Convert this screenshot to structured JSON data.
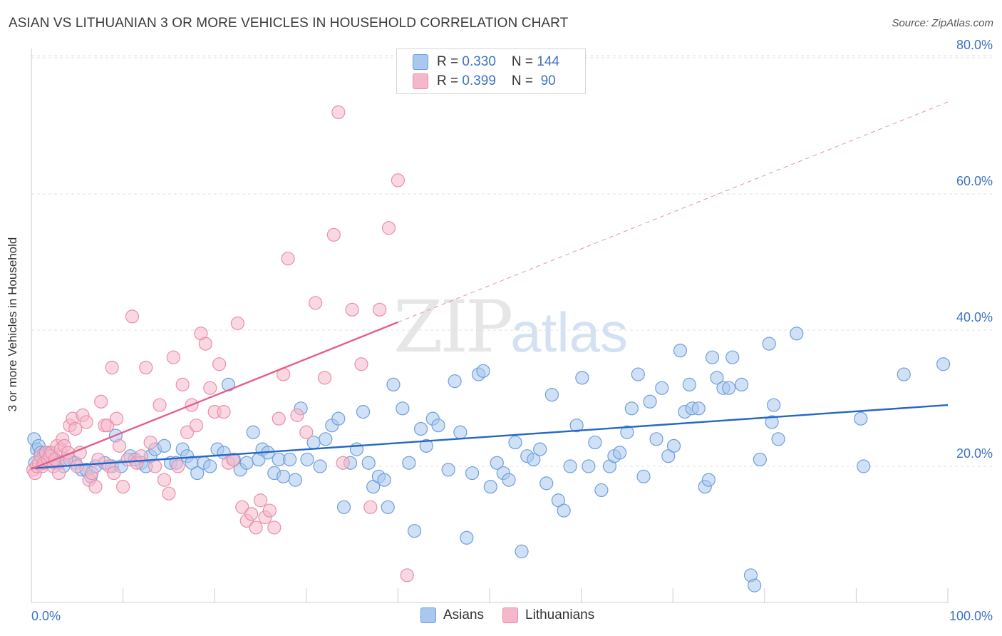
{
  "header": {
    "title": "ASIAN VS LITHUANIAN 3 OR MORE VEHICLES IN HOUSEHOLD CORRELATION CHART",
    "source": "Source: ZipAtlas.com"
  },
  "watermark": {
    "zip": "ZIP",
    "atlas": "atlas"
  },
  "legend": {
    "rows": [
      {
        "r_label": "R = ",
        "r_value": "0.330",
        "n_label": "N = ",
        "n_value": "144"
      },
      {
        "r_label": "R = ",
        "r_value": "0.399",
        "n_label": "N = ",
        "n_value": " 90"
      }
    ]
  },
  "bottom_legend": {
    "asians": "Asians",
    "lithuanians": "Lithuanians"
  },
  "colors": {
    "asian_fill": "#a9c8ee",
    "asian_stroke": "#6e9fdc",
    "asian_line": "#2467c9",
    "lith_fill": "#f5b8ca",
    "lith_stroke": "#ea8eac",
    "lith_line": "#e2608a",
    "grid": "#e2e2e2",
    "tick_text": "#3d72c4"
  },
  "chart_data": {
    "type": "scatter",
    "title": "ASIAN VS LITHUANIAN 3 OR MORE VEHICLES IN HOUSEHOLD CORRELATION CHART",
    "xlabel": "",
    "ylabel": "3 or more Vehicles in Household",
    "xlim": [
      0,
      100
    ],
    "ylim": [
      0,
      84
    ],
    "x_tick_labels": [
      "0.0%",
      "100.0%"
    ],
    "y_ticks": [
      20,
      40,
      60,
      80
    ],
    "y_tick_labels": [
      "20.0%",
      "40.0%",
      "60.0%",
      "80.0%"
    ],
    "grid": true,
    "legend_position": "top-center",
    "series": [
      {
        "name": "Asians",
        "r": 0.33,
        "n": 144,
        "trend": {
          "x0": 0,
          "y0": 19.7,
          "x1": 100,
          "y1": 29.0,
          "solid_until": 100
        },
        "points": [
          [
            0.3,
            24
          ],
          [
            0.6,
            22.5
          ],
          [
            0.8,
            23
          ],
          [
            1.0,
            22
          ],
          [
            1.3,
            21.5
          ],
          [
            1.5,
            22
          ],
          [
            1.8,
            21
          ],
          [
            2.2,
            21.5
          ],
          [
            2.5,
            20.5
          ],
          [
            3.0,
            20.5
          ],
          [
            3.5,
            20
          ],
          [
            4.2,
            21
          ],
          [
            4.8,
            20.5
          ],
          [
            5.5,
            19.5
          ],
          [
            6.0,
            19.5
          ],
          [
            6.5,
            18.5
          ],
          [
            7.0,
            20
          ],
          [
            8.0,
            20.5
          ],
          [
            8.8,
            20
          ],
          [
            9.2,
            24.5
          ],
          [
            9.8,
            20
          ],
          [
            10.8,
            21.5
          ],
          [
            11.3,
            21
          ],
          [
            12.0,
            20.5
          ],
          [
            12.5,
            20
          ],
          [
            13.0,
            21.5
          ],
          [
            13.5,
            22.5
          ],
          [
            14.5,
            23
          ],
          [
            15.2,
            20.5
          ],
          [
            15.8,
            20.5
          ],
          [
            16.5,
            22.5
          ],
          [
            17.0,
            21.5
          ],
          [
            17.5,
            20.5
          ],
          [
            18.1,
            19
          ],
          [
            18.8,
            20.5
          ],
          [
            19.5,
            20
          ],
          [
            20.3,
            22.5
          ],
          [
            21.0,
            22
          ],
          [
            21.5,
            32
          ],
          [
            22.1,
            21
          ],
          [
            22.8,
            19.5
          ],
          [
            23.5,
            20.5
          ],
          [
            24.2,
            25
          ],
          [
            24.8,
            21
          ],
          [
            25.2,
            22.5
          ],
          [
            25.8,
            22
          ],
          [
            26.5,
            19
          ],
          [
            27.0,
            21
          ],
          [
            27.5,
            18.5
          ],
          [
            28.2,
            21
          ],
          [
            28.8,
            18
          ],
          [
            29.4,
            28.5
          ],
          [
            30.1,
            21
          ],
          [
            30.8,
            23.5
          ],
          [
            31.5,
            20
          ],
          [
            32.1,
            24
          ],
          [
            32.8,
            26
          ],
          [
            33.5,
            27
          ],
          [
            34.1,
            14
          ],
          [
            34.8,
            20.5
          ],
          [
            35.5,
            22.5
          ],
          [
            36.2,
            28
          ],
          [
            36.8,
            20.5
          ],
          [
            37.3,
            17
          ],
          [
            37.9,
            18.5
          ],
          [
            38.5,
            18
          ],
          [
            38.9,
            14
          ],
          [
            39.5,
            32
          ],
          [
            40.5,
            28.5
          ],
          [
            41.2,
            20.5
          ],
          [
            41.8,
            10.5
          ],
          [
            42.5,
            25.5
          ],
          [
            43.1,
            23
          ],
          [
            43.8,
            27
          ],
          [
            44.4,
            26
          ],
          [
            45.5,
            19.5
          ],
          [
            46.2,
            32.5
          ],
          [
            46.8,
            25
          ],
          [
            47.5,
            9.5
          ],
          [
            48.1,
            19
          ],
          [
            48.8,
            33.5
          ],
          [
            49.3,
            34
          ],
          [
            50.1,
            17
          ],
          [
            50.8,
            20.5
          ],
          [
            51.5,
            19
          ],
          [
            52.1,
            18
          ],
          [
            52.8,
            23.5
          ],
          [
            53.5,
            7.5
          ],
          [
            54.1,
            21.5
          ],
          [
            54.8,
            21
          ],
          [
            55.5,
            22.5
          ],
          [
            56.2,
            17.5
          ],
          [
            56.8,
            30.5
          ],
          [
            57.5,
            15
          ],
          [
            58.1,
            13.5
          ],
          [
            58.8,
            20
          ],
          [
            59.5,
            26
          ],
          [
            60.1,
            33
          ],
          [
            60.8,
            20
          ],
          [
            61.5,
            23.5
          ],
          [
            62.2,
            16.5
          ],
          [
            63.1,
            20
          ],
          [
            63.6,
            21.5
          ],
          [
            64.2,
            22
          ],
          [
            65.0,
            25
          ],
          [
            65.5,
            28.5
          ],
          [
            66.2,
            33.5
          ],
          [
            66.8,
            18.5
          ],
          [
            67.5,
            29.5
          ],
          [
            68.2,
            24
          ],
          [
            68.8,
            31.5
          ],
          [
            69.5,
            21.5
          ],
          [
            70.1,
            23
          ],
          [
            70.8,
            37
          ],
          [
            71.3,
            28
          ],
          [
            71.8,
            32
          ],
          [
            72.1,
            28.5
          ],
          [
            72.8,
            28.5
          ],
          [
            73.5,
            17
          ],
          [
            73.9,
            18
          ],
          [
            74.3,
            36
          ],
          [
            74.8,
            33
          ],
          [
            75.5,
            31.5
          ],
          [
            76.1,
            31.5
          ],
          [
            76.5,
            36
          ],
          [
            77.5,
            32
          ],
          [
            78.5,
            4
          ],
          [
            78.9,
            2.5
          ],
          [
            79.5,
            21
          ],
          [
            80.5,
            38
          ],
          [
            80.8,
            26.5
          ],
          [
            81.5,
            24
          ],
          [
            81.0,
            29
          ],
          [
            83.5,
            39.5
          ],
          [
            90.5,
            27
          ],
          [
            90.8,
            20
          ],
          [
            95.2,
            33.5
          ],
          [
            99.5,
            35
          ],
          [
            0.4,
            20.5
          ],
          [
            2.0,
            22
          ]
        ]
      },
      {
        "name": "Lithuanians",
        "r": 0.399,
        "n": 90,
        "trend": {
          "x0": 0,
          "y0": 19.6,
          "x1": 100,
          "y1": 73.5,
          "solid_until": 40
        },
        "points": [
          [
            0.2,
            19.5
          ],
          [
            0.4,
            19
          ],
          [
            0.6,
            20
          ],
          [
            0.8,
            20.5
          ],
          [
            1.0,
            21.5
          ],
          [
            1.2,
            20
          ],
          [
            1.4,
            20.5
          ],
          [
            1.6,
            22
          ],
          [
            1.8,
            21
          ],
          [
            2.0,
            21.5
          ],
          [
            2.2,
            22
          ],
          [
            2.4,
            20
          ],
          [
            2.6,
            21
          ],
          [
            2.8,
            23
          ],
          [
            3.0,
            19
          ],
          [
            3.2,
            22.5
          ],
          [
            3.4,
            24
          ],
          [
            3.6,
            23
          ],
          [
            3.8,
            21
          ],
          [
            4.0,
            22
          ],
          [
            4.2,
            26
          ],
          [
            4.5,
            27
          ],
          [
            4.8,
            25.5
          ],
          [
            5.0,
            20
          ],
          [
            5.3,
            22
          ],
          [
            5.6,
            27.5
          ],
          [
            6.0,
            26.5
          ],
          [
            6.3,
            18
          ],
          [
            6.6,
            19
          ],
          [
            7.0,
            17
          ],
          [
            7.3,
            21
          ],
          [
            7.6,
            29.5
          ],
          [
            8.0,
            26
          ],
          [
            8.3,
            26
          ],
          [
            8.5,
            20
          ],
          [
            8.8,
            34.5
          ],
          [
            9.0,
            19
          ],
          [
            9.3,
            27
          ],
          [
            9.6,
            23
          ],
          [
            10.0,
            17
          ],
          [
            10.5,
            21
          ],
          [
            11.0,
            42
          ],
          [
            11.5,
            20.5
          ],
          [
            12.0,
            21.5
          ],
          [
            12.5,
            34.5
          ],
          [
            13.0,
            23.5
          ],
          [
            13.5,
            20
          ],
          [
            14.0,
            29
          ],
          [
            14.5,
            18
          ],
          [
            15.0,
            16
          ],
          [
            15.5,
            36
          ],
          [
            16.0,
            20
          ],
          [
            16.5,
            32
          ],
          [
            17.0,
            25
          ],
          [
            17.5,
            29
          ],
          [
            18.0,
            26
          ],
          [
            18.5,
            39.5
          ],
          [
            19.0,
            38
          ],
          [
            19.5,
            31.5
          ],
          [
            20.0,
            28
          ],
          [
            20.5,
            35
          ],
          [
            21.0,
            28
          ],
          [
            21.5,
            20.5
          ],
          [
            22.0,
            21
          ],
          [
            22.5,
            41
          ],
          [
            23.0,
            14
          ],
          [
            23.5,
            12
          ],
          [
            24.0,
            13
          ],
          [
            24.5,
            11
          ],
          [
            25.0,
            15
          ],
          [
            25.5,
            12.5
          ],
          [
            26.0,
            13.5
          ],
          [
            26.5,
            11
          ],
          [
            27.0,
            27
          ],
          [
            27.5,
            33.5
          ],
          [
            28.0,
            50.5
          ],
          [
            29.0,
            27.5
          ],
          [
            30.0,
            25
          ],
          [
            31.0,
            44
          ],
          [
            32.0,
            33
          ],
          [
            33.0,
            54
          ],
          [
            33.5,
            72
          ],
          [
            34.0,
            20.5
          ],
          [
            35.0,
            43
          ],
          [
            36.0,
            35
          ],
          [
            37.0,
            14
          ],
          [
            38.0,
            43
          ],
          [
            39.0,
            55
          ],
          [
            40.0,
            62
          ],
          [
            41.0,
            4
          ]
        ]
      }
    ]
  }
}
